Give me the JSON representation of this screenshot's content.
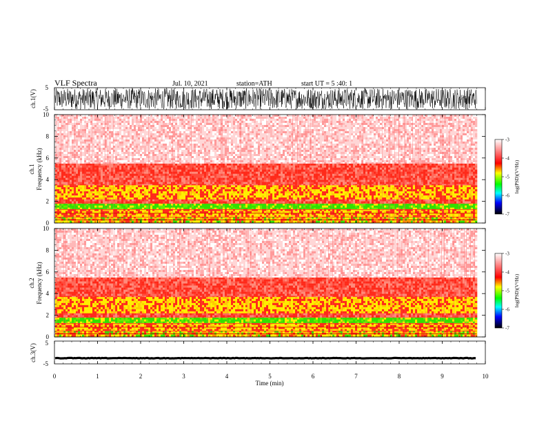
{
  "header": {
    "title": "VLF Spectra",
    "date": "Jul. 10, 2021",
    "station": "station=ATH",
    "start": "start UT = 5 :40: 1"
  },
  "chart_data": [
    {
      "type": "line",
      "name": "ch1-waveform",
      "ylabel": "ch.1(V)",
      "ylim": [
        -5,
        5
      ],
      "yticks": [
        "5",
        "-5"
      ],
      "xlim": [
        0,
        10
      ],
      "style": "dense-black-noise",
      "amplitude_range": [
        -5,
        5
      ]
    },
    {
      "type": "heatmap",
      "name": "ch1-spectrogram",
      "ylabel_lines": [
        "ch.1",
        "Frequency (kHz)"
      ],
      "ylim": [
        0,
        10
      ],
      "yticks": [
        0,
        2,
        4,
        6,
        8,
        10
      ],
      "xlim": [
        0,
        10
      ],
      "data_end_min": 9.8,
      "bands_khz": [
        {
          "from": 0,
          "to": 0.6,
          "level": "yellow-green-red striped"
        },
        {
          "from": 0.6,
          "to": 1.3,
          "level": "yellow-red"
        },
        {
          "from": 1.3,
          "to": 1.8,
          "level": "green"
        },
        {
          "from": 1.8,
          "to": 2.2,
          "level": "red"
        },
        {
          "from": 2.2,
          "to": 3.5,
          "level": "yellow-red"
        },
        {
          "from": 3.5,
          "to": 5.5,
          "level": "red"
        },
        {
          "from": 5.5,
          "to": 10,
          "level": "light red"
        }
      ],
      "colorbar": {
        "label": "log(PSD)(V²/Hz)",
        "ticks": [
          "-3",
          "-4",
          "-5",
          "-6",
          "-7"
        ],
        "range": [
          -7,
          -3
        ]
      }
    },
    {
      "type": "heatmap",
      "name": "ch2-spectrogram",
      "ylabel_lines": [
        "ch.2",
        "Frequency (kHz)"
      ],
      "ylim": [
        0,
        10
      ],
      "yticks": [
        0,
        2,
        4,
        6,
        8,
        10
      ],
      "xlim": [
        0,
        10
      ],
      "data_end_min": 9.8,
      "bands_khz": [
        {
          "from": 0,
          "to": 0.6,
          "level": "yellow-green-red striped"
        },
        {
          "from": 0.6,
          "to": 1.3,
          "level": "yellow-red"
        },
        {
          "from": 1.3,
          "to": 1.8,
          "level": "green"
        },
        {
          "from": 1.8,
          "to": 2.2,
          "level": "red"
        },
        {
          "from": 2.2,
          "to": 3.7,
          "level": "yellow-red"
        },
        {
          "from": 3.7,
          "to": 5.5,
          "level": "red"
        },
        {
          "from": 5.5,
          "to": 10,
          "level": "light red"
        }
      ],
      "colorbar": {
        "label": "log(PSD)(V²/Hz)",
        "ticks": [
          "-3",
          "-4",
          "-5",
          "-6",
          "-7"
        ],
        "range": [
          -7,
          -3
        ]
      }
    },
    {
      "type": "line",
      "name": "ch3-waveform",
      "ylabel": "ch.3(V)",
      "ylim": [
        -5,
        5
      ],
      "yticks": [
        "5",
        "-5"
      ],
      "xlim": [
        0,
        10
      ],
      "style": "flat-thick-black",
      "level_v": -2.5
    }
  ],
  "x_axis": {
    "label": "Time (min)",
    "range": [
      0,
      10
    ],
    "ticks": [
      "0",
      "1",
      "2",
      "3",
      "4",
      "5",
      "6",
      "7",
      "8",
      "9",
      "10"
    ]
  },
  "colors": {
    "spec_light": "#ffd6d6",
    "spec_red": "#ff2a1a",
    "spec_yellow": "#ffee00",
    "spec_green": "#33e000",
    "cbar": [
      "#ffffff",
      "#ff0000",
      "#ffff00",
      "#00ff00",
      "#00ffff",
      "#0000ff",
      "#000000"
    ]
  }
}
